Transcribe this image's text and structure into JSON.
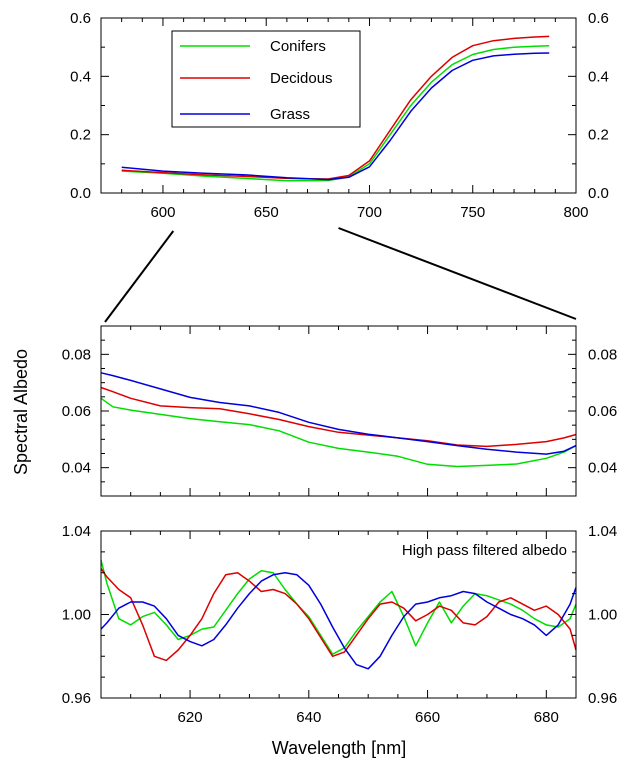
{
  "chart_data": [
    {
      "id": "top",
      "type": "line",
      "xlim": [
        570,
        800
      ],
      "ylim": [
        0,
        0.6
      ],
      "x_ticks": [
        600,
        650,
        700,
        750,
        800
      ],
      "y_ticks": [
        0.0,
        0.2,
        0.4,
        0.6
      ],
      "x_tick_labels": [
        "600",
        "650",
        "700",
        "750",
        "800"
      ],
      "y_tick_labels": [
        "0.0",
        "0.2",
        "0.4",
        "0.6"
      ],
      "legend": {
        "position": "top-left",
        "entries": [
          "Conifers",
          "Decidous",
          "Grass"
        ]
      },
      "series": [
        {
          "name": "Conifers",
          "color": "#00dd00",
          "x": [
            580,
            600,
            620,
            640,
            660,
            680,
            690,
            700,
            710,
            720,
            730,
            740,
            750,
            760,
            770,
            780,
            787
          ],
          "y": [
            0.075,
            0.068,
            0.058,
            0.05,
            0.042,
            0.043,
            0.055,
            0.1,
            0.2,
            0.3,
            0.38,
            0.44,
            0.475,
            0.492,
            0.5,
            0.503,
            0.505
          ]
        },
        {
          "name": "Decidous",
          "color": "#dd0000",
          "x": [
            580,
            600,
            620,
            640,
            660,
            680,
            690,
            700,
            710,
            720,
            730,
            740,
            750,
            760,
            770,
            780,
            787
          ],
          "y": [
            0.078,
            0.07,
            0.062,
            0.057,
            0.05,
            0.048,
            0.06,
            0.11,
            0.215,
            0.32,
            0.4,
            0.465,
            0.505,
            0.522,
            0.53,
            0.535,
            0.537
          ]
        },
        {
          "name": "Grass",
          "color": "#0000dd",
          "x": [
            580,
            600,
            620,
            640,
            660,
            680,
            690,
            700,
            710,
            720,
            730,
            740,
            750,
            760,
            770,
            780,
            787
          ],
          "y": [
            0.088,
            0.075,
            0.068,
            0.062,
            0.052,
            0.046,
            0.054,
            0.09,
            0.18,
            0.28,
            0.36,
            0.42,
            0.455,
            0.47,
            0.476,
            0.479,
            0.48
          ]
        }
      ]
    },
    {
      "id": "middle",
      "type": "line",
      "xlim": [
        605,
        685
      ],
      "ylim": [
        0.03,
        0.09
      ],
      "y_ticks": [
        0.04,
        0.06,
        0.08
      ],
      "y_tick_labels": [
        "0.04",
        "0.06",
        "0.08"
      ],
      "ylabel": "Spectral Albedo",
      "series": [
        {
          "name": "Conifers",
          "color": "#00dd00",
          "x": [
            605,
            607,
            610,
            615,
            620,
            625,
            630,
            635,
            640,
            645,
            650,
            655,
            660,
            665,
            670,
            675,
            680,
            683,
            685
          ],
          "y": [
            0.0645,
            0.0615,
            0.0603,
            0.0588,
            0.0573,
            0.0562,
            0.0552,
            0.053,
            0.049,
            0.0468,
            0.0455,
            0.044,
            0.0412,
            0.0404,
            0.0408,
            0.0413,
            0.0433,
            0.0455,
            0.0478
          ]
        },
        {
          "name": "Decidous",
          "color": "#dd0000",
          "x": [
            605,
            607,
            610,
            615,
            620,
            625,
            630,
            635,
            640,
            645,
            650,
            655,
            660,
            665,
            670,
            675,
            680,
            683,
            685
          ],
          "y": [
            0.0683,
            0.0668,
            0.0645,
            0.0618,
            0.0612,
            0.0608,
            0.059,
            0.057,
            0.0545,
            0.0525,
            0.0515,
            0.0505,
            0.0495,
            0.048,
            0.0475,
            0.0482,
            0.0492,
            0.0505,
            0.0517
          ]
        },
        {
          "name": "Grass",
          "color": "#0000dd",
          "x": [
            605,
            607,
            610,
            615,
            620,
            625,
            630,
            635,
            640,
            645,
            650,
            655,
            660,
            665,
            670,
            675,
            680,
            683,
            685
          ],
          "y": [
            0.0735,
            0.0725,
            0.0708,
            0.0678,
            0.0648,
            0.063,
            0.0618,
            0.0595,
            0.056,
            0.0535,
            0.0518,
            0.0505,
            0.0492,
            0.0478,
            0.0465,
            0.0455,
            0.0448,
            0.0458,
            0.0478
          ]
        }
      ]
    },
    {
      "id": "bottom",
      "type": "line",
      "xlim": [
        605,
        685
      ],
      "ylim": [
        0.96,
        1.04
      ],
      "x_ticks": [
        620,
        640,
        660,
        680
      ],
      "x_tick_labels": [
        "620",
        "640",
        "660",
        "680"
      ],
      "y_ticks": [
        0.96,
        1.0,
        1.04
      ],
      "y_tick_labels": [
        "0.96",
        "1.00",
        "1.04"
      ],
      "xlabel": "Wavelength [nm]",
      "annotation": "High pass filtered albedo",
      "series": [
        {
          "name": "Conifers",
          "color": "#00dd00",
          "x": [
            605,
            606,
            608,
            610,
            612,
            614,
            616,
            618,
            620,
            622,
            624,
            626,
            628,
            630,
            632,
            634,
            636,
            638,
            640,
            642,
            644,
            646,
            648,
            650,
            652,
            654,
            656,
            658,
            660,
            662,
            664,
            666,
            668,
            670,
            672,
            674,
            676,
            678,
            680,
            682,
            684,
            685
          ],
          "y": [
            1.026,
            1.015,
            0.998,
            0.995,
            0.999,
            1.001,
            0.995,
            0.988,
            0.99,
            0.993,
            0.994,
            1.002,
            1.01,
            1.017,
            1.021,
            1.02,
            1.012,
            1.005,
            0.999,
            0.99,
            0.981,
            0.984,
            0.992,
            0.999,
            1.006,
            1.011,
            0.999,
            0.985,
            0.996,
            1.006,
            0.996,
            1.004,
            1.01,
            1.009,
            1.007,
            1.005,
            1.002,
            0.998,
            0.995,
            0.994,
            0.998,
            1.005
          ]
        },
        {
          "name": "Decidous",
          "color": "#dd0000",
          "x": [
            605,
            606,
            608,
            610,
            612,
            614,
            616,
            618,
            620,
            622,
            624,
            626,
            628,
            630,
            632,
            634,
            636,
            638,
            640,
            642,
            644,
            646,
            648,
            650,
            652,
            654,
            656,
            658,
            660,
            662,
            664,
            666,
            668,
            670,
            672,
            674,
            676,
            678,
            680,
            682,
            684,
            685
          ],
          "y": [
            1.022,
            1.018,
            1.012,
            1.008,
            0.995,
            0.98,
            0.978,
            0.983,
            0.99,
            0.998,
            1.01,
            1.019,
            1.02,
            1.016,
            1.011,
            1.012,
            1.01,
            1.005,
            0.998,
            0.989,
            0.98,
            0.982,
            0.99,
            0.998,
            1.005,
            1.006,
            1.003,
            0.997,
            1.0,
            1.004,
            1.002,
            0.996,
            0.995,
            0.999,
            1.006,
            1.008,
            1.005,
            1.002,
            1.004,
            1.0,
            0.993,
            0.983
          ]
        },
        {
          "name": "Grass",
          "color": "#0000dd",
          "x": [
            605,
            606,
            608,
            610,
            612,
            614,
            616,
            618,
            620,
            622,
            624,
            626,
            628,
            630,
            632,
            634,
            636,
            638,
            640,
            642,
            644,
            646,
            648,
            650,
            652,
            654,
            656,
            658,
            660,
            662,
            664,
            666,
            668,
            670,
            672,
            674,
            676,
            678,
            680,
            682,
            684,
            685
          ],
          "y": [
            0.993,
            0.996,
            1.003,
            1.006,
            1.006,
            1.004,
            0.998,
            0.99,
            0.987,
            0.985,
            0.988,
            0.995,
            1.003,
            1.01,
            1.016,
            1.019,
            1.02,
            1.019,
            1.014,
            1.005,
            0.994,
            0.984,
            0.976,
            0.974,
            0.98,
            0.99,
            0.999,
            1.005,
            1.006,
            1.008,
            1.009,
            1.011,
            1.01,
            1.006,
            1.003,
            1.0,
            0.998,
            0.995,
            0.99,
            0.995,
            1.005,
            1.013
          ]
        }
      ]
    }
  ]
}
